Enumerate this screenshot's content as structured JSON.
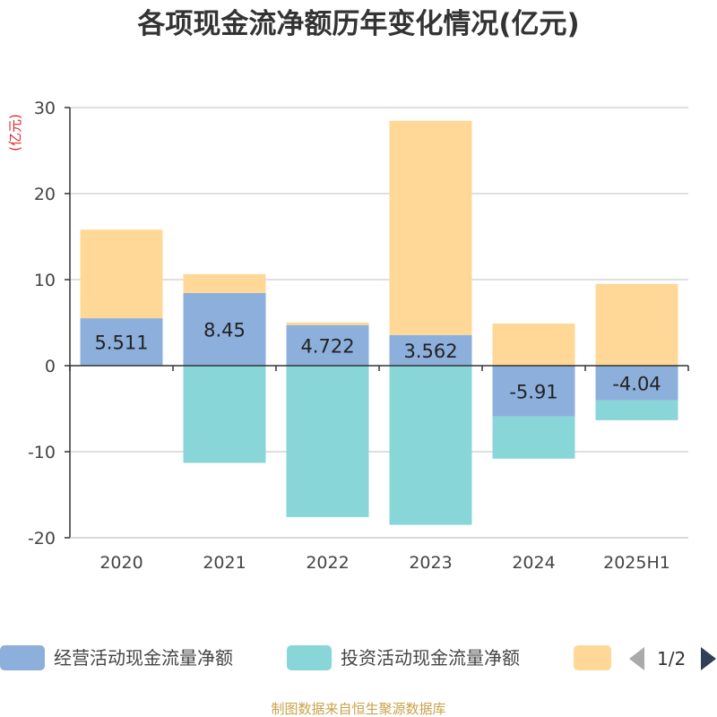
{
  "chart_data": {
    "type": "bar",
    "stacked": true,
    "title": "各项现金流净额历年变化情况(亿元)",
    "unit_label": "(亿元)",
    "categories": [
      "2020",
      "2021",
      "2022",
      "2023",
      "2024",
      "2025H1"
    ],
    "ylim": [
      -20,
      30
    ],
    "yticks": [
      30,
      20,
      10,
      0,
      -10,
      -20
    ],
    "grid": true,
    "legend_position": "bottom",
    "series": [
      {
        "name": "经营活动现金流量净额",
        "color": "#8dafdb",
        "values": [
          5.511,
          8.45,
          4.722,
          3.562,
          -5.91,
          -4.04
        ],
        "labels": [
          "5.511",
          "8.45",
          "4.722",
          "3.562",
          "-5.91",
          "-4.04"
        ]
      },
      {
        "name": "投资活动现金流量净额",
        "color": "#88d6d8",
        "values": [
          0,
          -11.3,
          -17.6,
          -18.5,
          -4.9,
          -2.3
        ]
      },
      {
        "name": "",
        "color": "#ffd898",
        "values": [
          10.3,
          2.2,
          0.3,
          24.9,
          4.9,
          9.5
        ]
      }
    ],
    "pager": "1/2",
    "source": "制图数据来自恒生聚源数据库"
  }
}
